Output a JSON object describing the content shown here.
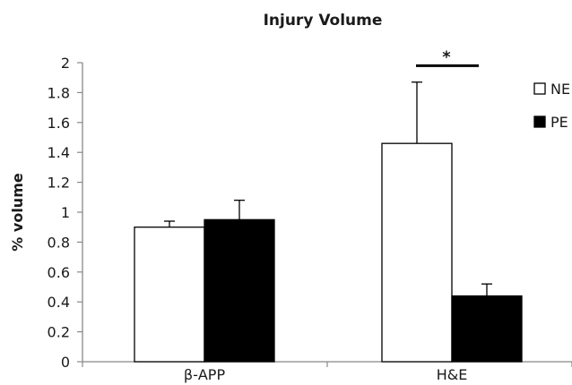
{
  "chart_data": {
    "type": "bar",
    "title": "Injury Volume",
    "xlabel": "",
    "ylabel": "% volume",
    "ylim": [
      0,
      2
    ],
    "yticks": [
      "0",
      "0.2",
      "0.4",
      "0.6",
      "0.8",
      "1",
      "1.2",
      "1.4",
      "1.6",
      "1.8",
      "2"
    ],
    "categories": [
      "β-APP",
      "H&E"
    ],
    "series": [
      {
        "name": "NE",
        "color": "#ffffff",
        "values": [
          0.9,
          1.46
        ],
        "errors": [
          0.04,
          0.41
        ]
      },
      {
        "name": "PE",
        "color": "#000000",
        "values": [
          0.95,
          0.44
        ],
        "errors": [
          0.13,
          0.08
        ]
      }
    ],
    "annotations": [
      {
        "text": "*",
        "category": "H&E",
        "value": 1.98
      }
    ],
    "grid": false,
    "legend_position": "right"
  }
}
